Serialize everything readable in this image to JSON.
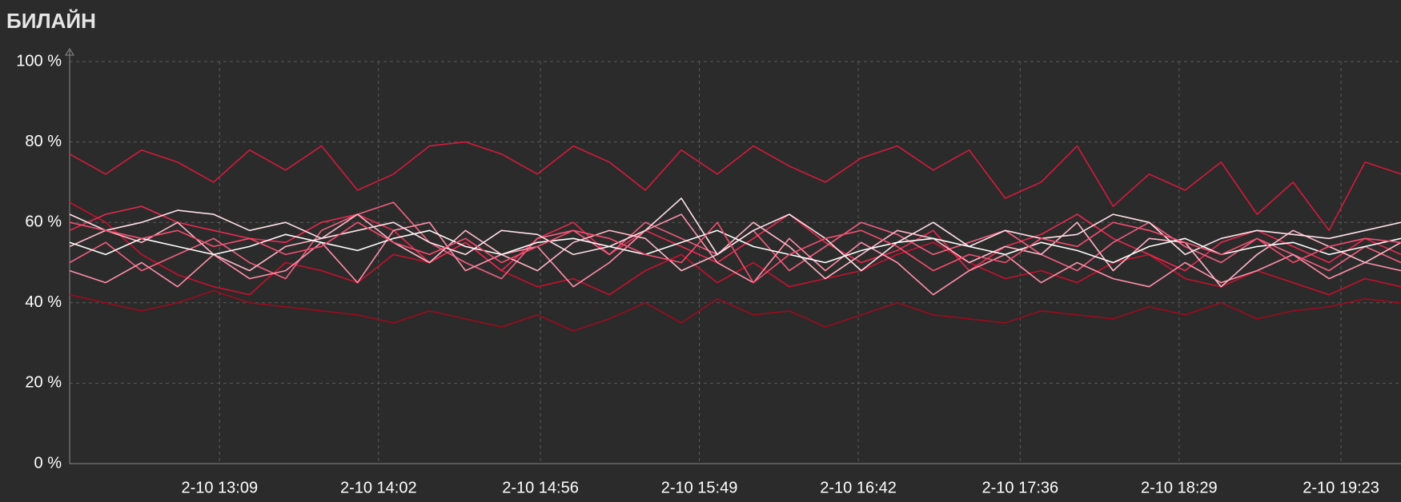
{
  "chart_data": {
    "type": "line",
    "title": "БИЛАЙН",
    "x": [
      "2-10 12:19",
      "2-10 12:31",
      "2-10 12:43",
      "2-10 12:55",
      "2-10 13:07",
      "2-10 13:19",
      "2-10 13:31",
      "2-10 13:43",
      "2-10 13:55",
      "2-10 14:07",
      "2-10 14:19",
      "2-10 14:31",
      "2-10 14:43",
      "2-10 14:55",
      "2-10 15:07",
      "2-10 15:19",
      "2-10 15:31",
      "2-10 15:43",
      "2-10 15:55",
      "2-10 16:07",
      "2-10 16:19",
      "2-10 16:31",
      "2-10 16:43",
      "2-10 16:55",
      "2-10 17:07",
      "2-10 17:19",
      "2-10 17:31",
      "2-10 17:43",
      "2-10 17:55",
      "2-10 18:07",
      "2-10 18:19",
      "2-10 18:31",
      "2-10 18:43",
      "2-10 18:55",
      "2-10 19:07",
      "2-10 19:19",
      "2-10 19:31",
      "2-10 19:43"
    ],
    "xlim": [
      "2-10 12:19",
      "2-10 19:43"
    ],
    "xticks": [
      "2-10 13:09",
      "2-10 14:02",
      "2-10 14:56",
      "2-10 15:49",
      "2-10 16:42",
      "2-10 17:36",
      "2-10 18:29",
      "2-10 19:23"
    ],
    "ylim": [
      0,
      100
    ],
    "yticks": [
      {
        "value": 0,
        "label": "0 %"
      },
      {
        "value": 20,
        "label": "20 %"
      },
      {
        "value": 40,
        "label": "40 %"
      },
      {
        "value": 60,
        "label": "60 %"
      },
      {
        "value": 80,
        "label": "80 %"
      },
      {
        "value": 100,
        "label": "100 %"
      }
    ],
    "grid": true,
    "series": [
      {
        "color": "#d41a3c",
        "values": [
          77,
          72,
          78,
          75,
          70,
          78,
          73,
          79,
          68,
          72,
          79,
          80,
          77,
          72,
          79,
          75,
          68,
          78,
          72,
          79,
          74,
          70,
          76,
          79,
          73,
          78,
          66,
          70,
          79,
          64,
          72,
          68,
          75,
          62,
          70,
          58,
          75,
          72
        ]
      },
      {
        "color": "#9e0a1e",
        "values": [
          42,
          40,
          38,
          40,
          43,
          40,
          39,
          38,
          37,
          35,
          38,
          36,
          34,
          37,
          33,
          36,
          40,
          35,
          41,
          37,
          38,
          34,
          37,
          40,
          37,
          36,
          35,
          38,
          37,
          36,
          39,
          37,
          40,
          36,
          38,
          39,
          41,
          40
        ]
      },
      {
        "color": "#c8102e",
        "values": [
          65,
          60,
          52,
          47,
          44,
          42,
          50,
          48,
          45,
          52,
          50,
          55,
          48,
          44,
          46,
          42,
          48,
          52,
          45,
          50,
          44,
          46,
          48,
          52,
          55,
          50,
          46,
          48,
          45,
          50,
          52,
          46,
          44,
          48,
          45,
          42,
          46,
          44
        ]
      },
      {
        "color": "#e8294f",
        "values": [
          58,
          62,
          64,
          60,
          58,
          56,
          55,
          60,
          62,
          58,
          50,
          55,
          48,
          56,
          60,
          52,
          58,
          54,
          50,
          56,
          62,
          55,
          50,
          53,
          58,
          48,
          54,
          57,
          62,
          56,
          52,
          48,
          55,
          58,
          54,
          50,
          56,
          52
        ]
      },
      {
        "color": "#f06080",
        "values": [
          50,
          55,
          48,
          52,
          56,
          50,
          46,
          58,
          62,
          65,
          55,
          50,
          46,
          56,
          58,
          52,
          60,
          56,
          52,
          58,
          48,
          54,
          60,
          57,
          52,
          55,
          58,
          52,
          48,
          55,
          60,
          54,
          50,
          56,
          52,
          48,
          54,
          50
        ]
      },
      {
        "color": "#ff8fa8",
        "values": [
          48,
          45,
          50,
          44,
          52,
          46,
          48,
          55,
          45,
          58,
          60,
          48,
          52,
          54,
          44,
          50,
          58,
          62,
          50,
          45,
          56,
          48,
          55,
          50,
          42,
          48,
          52,
          45,
          50,
          46,
          44,
          50,
          45,
          48,
          52,
          46,
          50,
          48
        ]
      },
      {
        "color": "#ffb6c6",
        "values": [
          54,
          58,
          55,
          60,
          52,
          48,
          54,
          56,
          62,
          55,
          50,
          58,
          52,
          48,
          55,
          58,
          56,
          48,
          52,
          60,
          54,
          46,
          52,
          58,
          56,
          50,
          54,
          52,
          60,
          48,
          56,
          55,
          44,
          52,
          58,
          54,
          50,
          55
        ]
      },
      {
        "color": "#ffe0e8",
        "values": [
          62,
          58,
          60,
          63,
          62,
          58,
          60,
          56,
          58,
          60,
          55,
          52,
          58,
          57,
          52,
          54,
          58,
          66,
          52,
          58,
          62,
          56,
          48,
          55,
          60,
          54,
          58,
          56,
          57,
          62,
          60,
          52,
          56,
          58,
          57,
          56,
          58,
          60
        ]
      },
      {
        "color": "#ffffff",
        "values": [
          55,
          52,
          56,
          54,
          52,
          54,
          57,
          55,
          53,
          56,
          58,
          54,
          52,
          55,
          56,
          54,
          52,
          55,
          58,
          54,
          52,
          50,
          53,
          55,
          56,
          54,
          52,
          55,
          53,
          50,
          54,
          56,
          52,
          54,
          55,
          52,
          54,
          56
        ]
      },
      {
        "color": "#f54d6f",
        "values": [
          60,
          58,
          56,
          58,
          54,
          56,
          52,
          54,
          60,
          55,
          52,
          56,
          50,
          54,
          58,
          56,
          52,
          50,
          60,
          45,
          52,
          56,
          58,
          54,
          48,
          52,
          50,
          56,
          54,
          60,
          58,
          55,
          52,
          56,
          50,
          54,
          56,
          55
        ]
      }
    ]
  }
}
